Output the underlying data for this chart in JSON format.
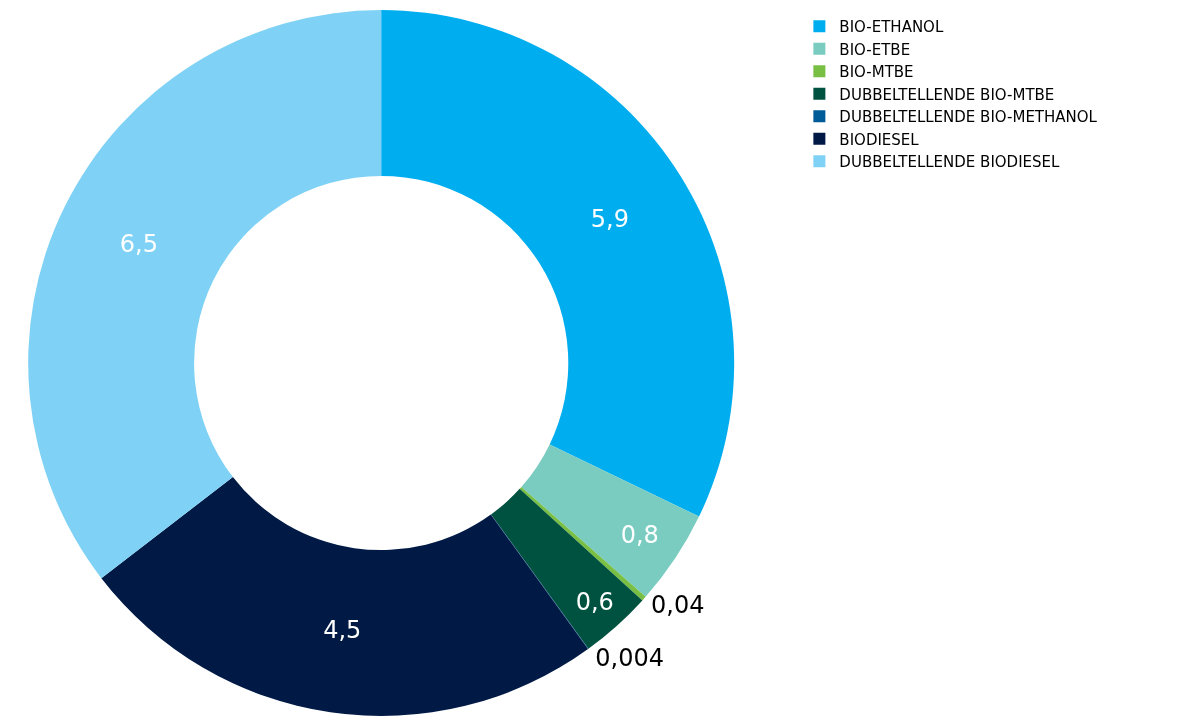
{
  "chart_data": {
    "type": "donut",
    "categories": [
      "BIO-ETHANOL",
      "BIO-ETBE",
      "BIO-MTBE",
      "DUBBELTELLENDE BIO-MTBE",
      "DUBBELTELLENDE BIO-METHANOL",
      "BIODIESEL",
      "DUBBELTELLENDE BIODIESEL"
    ],
    "values": [
      5.9,
      0.8,
      0.04,
      0.6,
      0.004,
      4.5,
      6.5
    ],
    "colors": [
      "#00aeef",
      "#7accc0",
      "#78bf43",
      "#005240",
      "#005c99",
      "#001a45",
      "#7fd2f5"
    ],
    "value_labels": [
      "5,9",
      "0,8",
      "0,04",
      "0,6",
      "0,004",
      "4,5",
      "6,5"
    ],
    "legend": "top right"
  }
}
